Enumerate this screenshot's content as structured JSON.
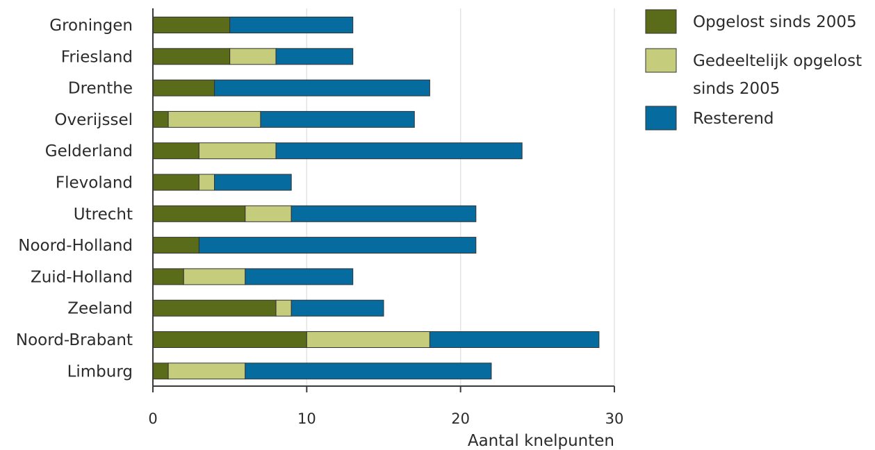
{
  "chart_data": {
    "type": "bar",
    "orientation": "horizontal",
    "stacked": true,
    "title": "",
    "xlabel": "Aantal knelpunten",
    "ylabel": "",
    "xlim": [
      0,
      30
    ],
    "xticks": [
      0,
      10,
      20,
      30
    ],
    "grid": true,
    "legend_position": "right",
    "categories": [
      "Groningen",
      "Friesland",
      "Drenthe",
      "Overijssel",
      "Gelderland",
      "Flevoland",
      "Utrecht",
      "Noord-Holland",
      "Zuid-Holland",
      "Zeeland",
      "Noord-Brabant",
      "Limburg"
    ],
    "series": [
      {
        "name": "Opgelost sinds 2005",
        "color": "#5a6b1a",
        "values": [
          5,
          5,
          4,
          1,
          3,
          3,
          6,
          3,
          2,
          8,
          10,
          1
        ]
      },
      {
        "name": "Gedeeltelijk opgelost sinds 2005",
        "color": "#c5cc7c",
        "values": [
          0,
          3,
          0,
          6,
          5,
          1,
          3,
          0,
          4,
          1,
          8,
          5
        ]
      },
      {
        "name": "Resterend",
        "color": "#066ca0",
        "values": [
          8,
          5,
          14,
          10,
          16,
          5,
          12,
          18,
          7,
          6,
          11,
          16
        ]
      }
    ]
  }
}
